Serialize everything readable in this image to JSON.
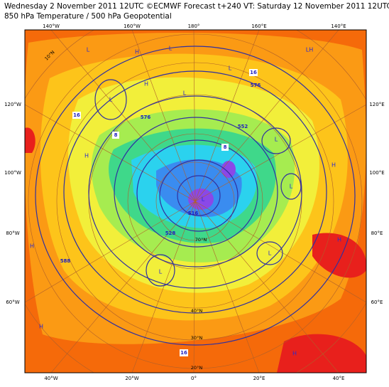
{
  "header": {
    "title": "Wednesday 2 November 2011 12UTC ©ECMWF Forecast t+240 VT: Saturday 12 November 2011 12UTC",
    "subtitle": "850 hPa Temperature / 500 hPa Geopotential"
  },
  "frame": {
    "top_labels": [
      "140°W",
      "160°W",
      "180°",
      "160°E",
      "140°E"
    ],
    "bottom_labels": [
      "40°W",
      "20°W",
      "0°",
      "20°E",
      "40°E"
    ],
    "left_labels": [
      "120°W",
      "100°W",
      "80°W",
      "60°W"
    ],
    "right_labels": [
      "120°E",
      "100°E",
      "80°E",
      "60°E"
    ]
  },
  "map": {
    "lat_labels": [
      "10°N",
      "70°N",
      "40°N",
      "30°N",
      "20°N"
    ],
    "pressure_centers": [
      "L",
      "L",
      "H",
      "L",
      "H",
      "L",
      "H",
      "L",
      "H",
      "L",
      "L",
      "L",
      "H",
      "H",
      "L",
      "L",
      "H",
      "H",
      "H",
      "LH"
    ],
    "contour_labels": [
      "16",
      "16",
      "16",
      "8",
      "8",
      "576",
      "552",
      "576",
      "528",
      "516",
      "588"
    ]
  }
}
